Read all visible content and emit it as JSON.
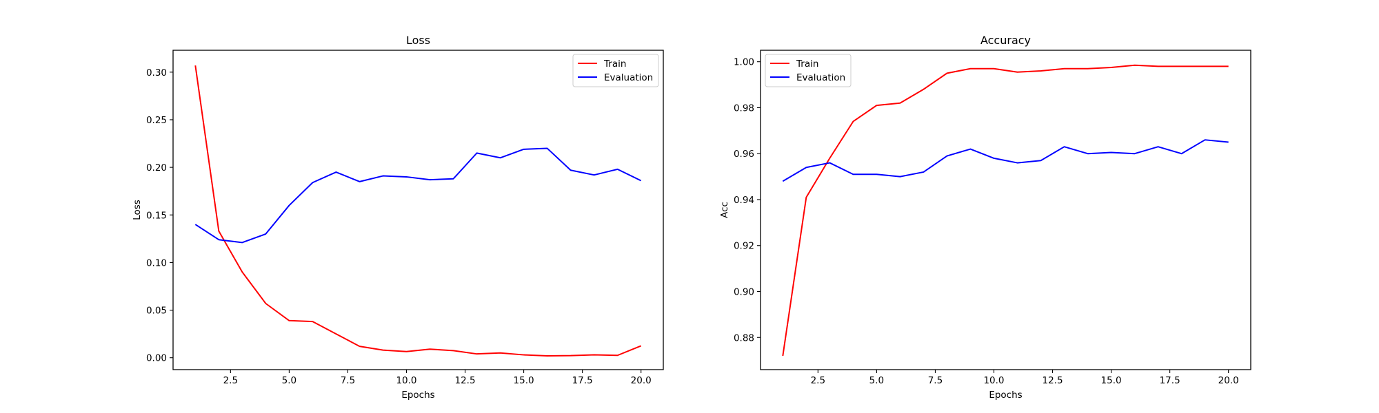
{
  "colors": {
    "train": "#ff0000",
    "evaluation": "#0000ff"
  },
  "chart_data": [
    {
      "type": "line",
      "title": "Loss",
      "xlabel": "Epochs",
      "ylabel": "Loss",
      "xlim": [
        0.05,
        20.95
      ],
      "ylim": [
        -0.0125,
        0.323
      ],
      "xticks": [
        2.5,
        5.0,
        7.5,
        10.0,
        12.5,
        15.0,
        17.5,
        20.0
      ],
      "xtick_labels": [
        "2.5",
        "5.0",
        "7.5",
        "10.0",
        "12.5",
        "15.0",
        "17.5",
        "20.0"
      ],
      "yticks": [
        0.0,
        0.05,
        0.1,
        0.15,
        0.2,
        0.25,
        0.3
      ],
      "ytick_labels": [
        "0.00",
        "0.05",
        "0.10",
        "0.15",
        "0.20",
        "0.25",
        "0.30"
      ],
      "legend": "top-right",
      "grid": false,
      "x": [
        1,
        2,
        3,
        4,
        5,
        6,
        7,
        8,
        9,
        10,
        11,
        12,
        13,
        14,
        15,
        16,
        17,
        18,
        19,
        20
      ],
      "series": [
        {
          "name": "Train",
          "color": "#ff0000",
          "values": [
            0.307,
            0.133,
            0.09,
            0.057,
            0.039,
            0.038,
            0.025,
            0.012,
            0.008,
            0.0065,
            0.009,
            0.0075,
            0.004,
            0.005,
            0.003,
            0.002,
            0.0022,
            0.003,
            0.0025,
            0.0125
          ]
        },
        {
          "name": "Evaluation",
          "color": "#0000ff",
          "values": [
            0.14,
            0.124,
            0.121,
            0.13,
            0.16,
            0.184,
            0.195,
            0.185,
            0.191,
            0.19,
            0.187,
            0.188,
            0.215,
            0.21,
            0.219,
            0.22,
            0.197,
            0.192,
            0.198,
            0.186
          ]
        }
      ]
    },
    {
      "type": "line",
      "title": "Accuracy",
      "xlabel": "Epochs",
      "ylabel": "Acc",
      "xlim": [
        0.05,
        20.95
      ],
      "ylim": [
        0.866,
        1.005
      ],
      "xticks": [
        2.5,
        5.0,
        7.5,
        10.0,
        12.5,
        15.0,
        17.5,
        20.0
      ],
      "xtick_labels": [
        "2.5",
        "5.0",
        "7.5",
        "10.0",
        "12.5",
        "15.0",
        "17.5",
        "20.0"
      ],
      "yticks": [
        0.88,
        0.9,
        0.92,
        0.94,
        0.96,
        0.98,
        1.0
      ],
      "ytick_labels": [
        "0.88",
        "0.90",
        "0.92",
        "0.94",
        "0.96",
        "0.98",
        "1.00"
      ],
      "legend": "top-left",
      "grid": false,
      "x": [
        1,
        2,
        3,
        4,
        5,
        6,
        7,
        8,
        9,
        10,
        11,
        12,
        13,
        14,
        15,
        16,
        17,
        18,
        19,
        20
      ],
      "series": [
        {
          "name": "Train",
          "color": "#ff0000",
          "values": [
            0.872,
            0.941,
            0.958,
            0.974,
            0.981,
            0.982,
            0.988,
            0.995,
            0.997,
            0.997,
            0.9955,
            0.996,
            0.997,
            0.997,
            0.9975,
            0.9985,
            0.998,
            0.998,
            0.998,
            0.998
          ]
        },
        {
          "name": "Evaluation",
          "color": "#0000ff",
          "values": [
            0.948,
            0.954,
            0.956,
            0.951,
            0.951,
            0.95,
            0.952,
            0.959,
            0.962,
            0.958,
            0.956,
            0.957,
            0.963,
            0.96,
            0.9605,
            0.96,
            0.963,
            0.96,
            0.966,
            0.965
          ]
        }
      ]
    }
  ]
}
